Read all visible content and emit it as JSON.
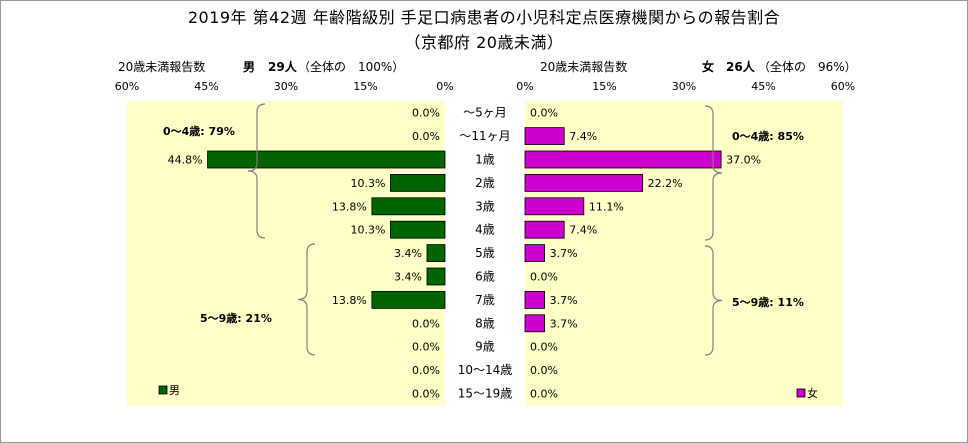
{
  "header": {
    "title_line1": "2019年 第42週 年齢階級別 手足口病患者の小児科定点医療機関からの報告割合",
    "title_line2": "（京都府 20歳未満）"
  },
  "left_panel": {
    "caption": "20歳未満報告数",
    "gender": "男",
    "count": "29人",
    "share": "（全体の　100%）",
    "legend": "男",
    "group_0_4": "0～4歳: 79%",
    "group_5_9": "5～9歳: 21%"
  },
  "right_panel": {
    "caption": "20歳未満報告数",
    "gender": "女",
    "count": "26人",
    "share": "（全体の　96%）",
    "legend": "女",
    "group_0_4": "0～4歳: 85%",
    "group_5_9": "5～9歳: 11%"
  },
  "colors": {
    "male_bar": "#006400",
    "female_bar": "#cc00cc",
    "plot_bg": "#ffffc8",
    "bar_stroke": "#000000",
    "bracket": "#808080"
  },
  "chart_data": {
    "type": "bar",
    "orientation": "horizontal",
    "layout": "population-pyramid",
    "categories": [
      "～5ヶ月",
      "～11ヶ月",
      "1歳",
      "2歳",
      "3歳",
      "4歳",
      "5歳",
      "6歳",
      "7歳",
      "8歳",
      "9歳",
      "10～14歳",
      "15～19歳"
    ],
    "series": [
      {
        "name": "男",
        "values": [
          0.0,
          0.0,
          44.8,
          10.3,
          13.8,
          10.3,
          3.4,
          3.4,
          13.8,
          0.0,
          0.0,
          0.0,
          0.0
        ],
        "labels": [
          "0.0%",
          "0.0%",
          "44.8%",
          "10.3%",
          "13.8%",
          "10.3%",
          "3.4%",
          "3.4%",
          "13.8%",
          "0.0%",
          "0.0%",
          "0.0%",
          "0.0%"
        ]
      },
      {
        "name": "女",
        "values": [
          0.0,
          7.4,
          37.0,
          22.2,
          11.1,
          7.4,
          3.7,
          0.0,
          3.7,
          3.7,
          0.0,
          0.0,
          0.0
        ],
        "labels": [
          "0.0%",
          "7.4%",
          "37.0%",
          "22.2%",
          "11.1%",
          "7.4%",
          "3.7%",
          "0.0%",
          "3.7%",
          "3.7%",
          "0.0%",
          "0.0%",
          "0.0%"
        ]
      }
    ],
    "xlim": [
      0,
      60
    ],
    "ticks_left": [
      "60%",
      "45%",
      "30%",
      "15%",
      "0%"
    ],
    "ticks_right": [
      "0%",
      "15%",
      "30%",
      "45%",
      "60%"
    ],
    "grid": false,
    "legend_position": "bottom-left / bottom-right"
  }
}
